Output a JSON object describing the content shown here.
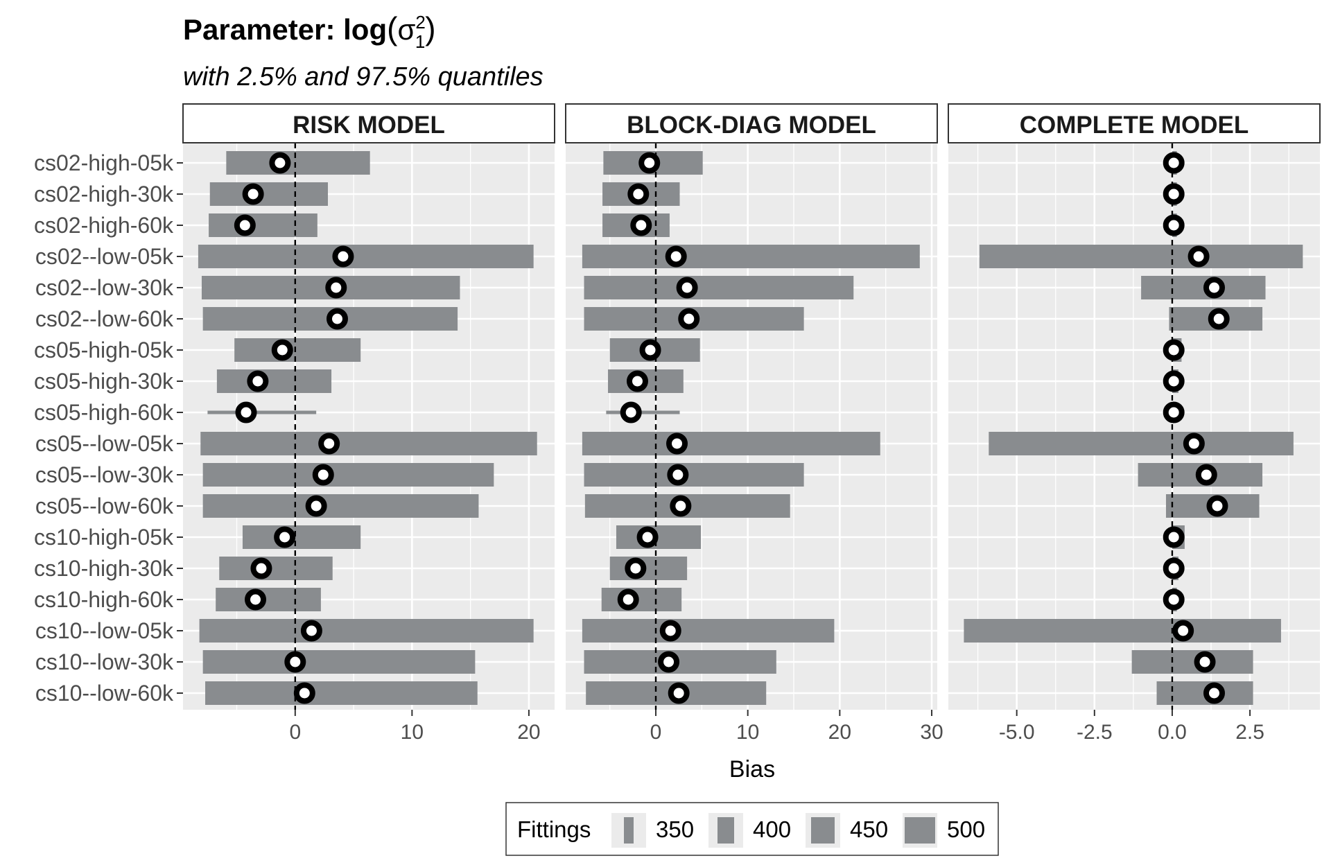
{
  "chart_data": {
    "type": "interval-dot",
    "title": {
      "prefix": "Parameter: log",
      "sigma": "σ",
      "sup": "2",
      "sub": "1"
    },
    "subtitle": "with 2.5% and 97.5% quantiles",
    "xlabel": "Bias",
    "ylabel": "",
    "categories": [
      "cs02-high-05k",
      "cs02-high-30k",
      "cs02-high-60k",
      "cs02--low-05k",
      "cs02--low-30k",
      "cs02--low-60k",
      "cs05-high-05k",
      "cs05-high-30k",
      "cs05-high-60k",
      "cs05--low-05k",
      "cs05--low-30k",
      "cs05--low-60k",
      "cs10-high-05k",
      "cs10-high-30k",
      "cs10-high-60k",
      "cs10--low-05k",
      "cs10--low-30k",
      "cs10--low-60k"
    ],
    "fittings": [
      500,
      500,
      500,
      500,
      500,
      500,
      500,
      500,
      350,
      500,
      500,
      500,
      500,
      500,
      500,
      500,
      500,
      500
    ],
    "legend": {
      "title": "Fittings",
      "position": "bottom",
      "entries": [
        "350",
        "400",
        "450",
        "500"
      ]
    },
    "reference_line": 0,
    "grid": true,
    "panels": [
      {
        "name": "RISK MODEL",
        "xlim": [
          -9.6,
          22.2
        ],
        "xticks": [
          {
            "v": 0,
            "label": "0"
          },
          {
            "v": 10,
            "label": "10"
          },
          {
            "v": 20,
            "label": "20"
          }
        ],
        "lower": [
          -5.9,
          -7.3,
          -7.4,
          -8.3,
          -8.0,
          -7.9,
          -5.2,
          -6.7,
          -7.5,
          -8.1,
          -7.9,
          -7.9,
          -4.5,
          -6.5,
          -6.8,
          -8.2,
          -7.9,
          -7.7
        ],
        "upper": [
          6.4,
          2.8,
          1.9,
          20.4,
          14.1,
          13.9,
          5.6,
          3.1,
          1.8,
          20.7,
          17.0,
          15.7,
          5.6,
          3.2,
          2.2,
          20.4,
          15.4,
          15.6
        ],
        "estimate": [
          -1.3,
          -3.6,
          -4.3,
          4.1,
          3.5,
          3.6,
          -1.1,
          -3.2,
          -4.2,
          2.9,
          2.4,
          1.8,
          -0.9,
          -2.9,
          -3.4,
          1.4,
          0.0,
          0.8
        ]
      },
      {
        "name": "BLOCK-DIAG MODEL",
        "xlim": [
          -9.8,
          30.6
        ],
        "xticks": [
          {
            "v": 0,
            "label": "0"
          },
          {
            "v": 10,
            "label": "10"
          },
          {
            "v": 20,
            "label": "20"
          },
          {
            "v": 30,
            "label": "30"
          }
        ],
        "lower": [
          -5.7,
          -5.8,
          -5.8,
          -8.0,
          -7.8,
          -7.8,
          -5.0,
          -5.2,
          -5.4,
          -8.0,
          -7.8,
          -7.7,
          -4.3,
          -5.0,
          -5.9,
          -8.0,
          -7.8,
          -7.6
        ],
        "upper": [
          5.1,
          2.6,
          1.5,
          28.7,
          21.5,
          16.1,
          4.8,
          3.0,
          2.6,
          24.4,
          16.1,
          14.6,
          4.9,
          3.4,
          2.8,
          19.4,
          13.1,
          12.0
        ],
        "estimate": [
          -0.7,
          -1.9,
          -1.6,
          2.2,
          3.4,
          3.6,
          -0.6,
          -2.0,
          -2.7,
          2.3,
          2.4,
          2.7,
          -0.9,
          -2.2,
          -3.0,
          1.6,
          1.4,
          2.5
        ]
      },
      {
        "name": "COMPLETE MODEL",
        "xlim": [
          -7.2,
          4.75
        ],
        "xticks": [
          {
            "v": -5,
            "label": "-5.0"
          },
          {
            "v": -2.5,
            "label": "-2.5"
          },
          {
            "v": 0,
            "label": "0.0"
          },
          {
            "v": 2.5,
            "label": "2.5"
          }
        ],
        "lower": [
          0.0,
          0.0,
          0.0,
          -6.2,
          -1.0,
          -0.1,
          0.0,
          0.0,
          0.0,
          -5.9,
          -1.1,
          -0.2,
          0.0,
          0.0,
          0.0,
          -6.7,
          -1.3,
          -0.5
        ],
        "upper": [
          0.15,
          0.15,
          0.15,
          4.2,
          3.0,
          2.9,
          0.3,
          0.2,
          0.15,
          3.9,
          2.9,
          2.8,
          0.4,
          0.2,
          0.15,
          3.5,
          2.6,
          2.6
        ],
        "estimate": [
          0.05,
          0.05,
          0.05,
          0.85,
          1.35,
          1.5,
          0.05,
          0.05,
          0.05,
          0.7,
          1.1,
          1.45,
          0.05,
          0.05,
          0.05,
          0.35,
          1.05,
          1.35
        ]
      }
    ],
    "colors": {
      "panel_background": "#ebebeb",
      "grid": "#ffffff",
      "bar": "#898c8f",
      "point_fill": "#ffffff",
      "point_stroke": "#000000",
      "strip_border": "#333333"
    }
  }
}
